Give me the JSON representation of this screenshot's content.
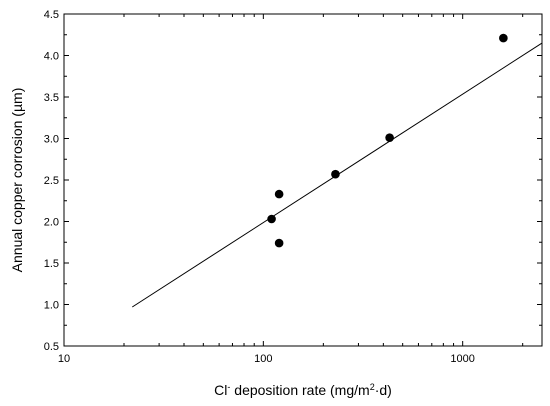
{
  "chart_data": {
    "type": "scatter",
    "xscale": "log",
    "xlim": [
      10,
      2500
    ],
    "ylim": [
      0.5,
      4.5
    ],
    "xticks": [
      10,
      100,
      1000
    ],
    "xtick_labels": [
      "10",
      "100",
      "1000"
    ],
    "yticks": [
      0.5,
      1.0,
      1.5,
      2.0,
      2.5,
      3.0,
      3.5,
      4.0,
      4.5
    ],
    "ytick_labels": [
      "0.5",
      "1.0",
      "1.5",
      "2.0",
      "2.5",
      "3.0",
      "3.5",
      "4.0",
      "4.5"
    ],
    "xlabel": "Cl- deposition rate (mg/m2·d)",
    "xlabel_parts": {
      "a": "Cl",
      "sup1": "-",
      "b": " deposition rate (mg/m",
      "sup2": "2",
      "c": "·d)"
    },
    "ylabel": "Annual copper corrosion (µm)",
    "grid": false,
    "points": [
      {
        "x": 110,
        "y": 2.03
      },
      {
        "x": 120,
        "y": 2.33
      },
      {
        "x": 120,
        "y": 1.74
      },
      {
        "x": 230,
        "y": 2.57
      },
      {
        "x": 430,
        "y": 3.01
      },
      {
        "x": 1600,
        "y": 4.21
      }
    ],
    "fit_line": {
      "x": [
        22,
        2500
      ],
      "y": [
        0.97,
        4.15
      ]
    },
    "colors": {
      "marker": "#000000",
      "line": "#000000",
      "axis": "#000000"
    }
  }
}
